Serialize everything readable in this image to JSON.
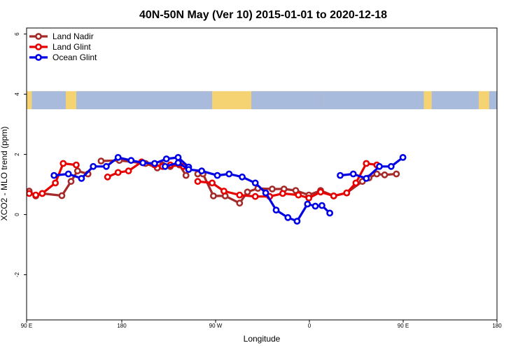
{
  "chart_data": {
    "type": "line",
    "title": "40N-50N May (Ver 10)   2015-01-01 to 2020-12-18",
    "xlabel": "Longitude",
    "ylabel": "XCO2 - MLO trend (ppm)",
    "x_range": [
      90,
      450
    ],
    "ylim": [
      -3.5,
      6.2
    ],
    "x_ticks": [
      {
        "value": 90,
        "label": "90 E"
      },
      {
        "value": 180,
        "label": "180"
      },
      {
        "value": 270,
        "label": "90 W"
      },
      {
        "value": 360,
        "label": "0"
      },
      {
        "value": 450,
        "label": "90 E"
      },
      {
        "value": 540,
        "label": "180"
      }
    ],
    "y_ticks": [
      {
        "value": -2,
        "label": "-2"
      },
      {
        "value": 0,
        "label": "0"
      },
      {
        "value": 2,
        "label": "2"
      },
      {
        "value": 4,
        "label": "4"
      },
      {
        "value": 6,
        "label": "6"
      }
    ],
    "legend_position": "top-left",
    "grid": false,
    "map_band": {
      "y_min": 3.5,
      "y_max": 4.1,
      "land_color": "#f5d372",
      "ocean_color": "#a8bbdc"
    },
    "series": [
      {
        "name": "Land Nadir",
        "color": "#a52a2a",
        "segments": [
          [
            [
              92,
              0.78
            ],
            [
              97,
              0.62
            ],
            [
              102,
              0.7
            ],
            [
              117,
              0.63
            ],
            [
              124,
              1.1
            ],
            [
              129,
              1.45
            ],
            [
              137,
              1.35
            ]
          ],
          [
            [
              147,
              1.78
            ],
            [
              161,
              1.8
            ],
            [
              181,
              1.7
            ],
            [
              190,
              1.55
            ],
            [
              194,
              1.65
            ],
            [
              200,
              1.6
            ],
            [
              207,
              1.65
            ],
            [
              212,
              1.3
            ]
          ],
          [
            [
              221,
              1.35
            ],
            [
              225,
              1.35
            ],
            [
              233,
              0.62
            ],
            [
              242,
              0.62
            ],
            [
              253,
              0.38
            ],
            [
              259,
              0.75
            ],
            [
              267,
              0.87
            ],
            [
              278,
              0.85
            ],
            [
              287,
              0.85
            ],
            [
              296,
              0.8
            ],
            [
              306,
              0.65
            ],
            [
              315,
              0.8
            ],
            [
              325,
              0.62
            ],
            [
              335,
              0.72
            ],
            [
              347,
              1.1
            ],
            [
              352,
              1.22
            ],
            [
              358,
              1.35
            ],
            [
              364,
              1.32
            ],
            [
              373,
              1.35
            ]
          ]
        ]
      },
      {
        "name": "Land Glint",
        "color": "#e60000",
        "segments": [
          [
            [
              92,
              0.7
            ],
            [
              97,
              0.65
            ],
            [
              102,
              0.7
            ],
            [
              112,
              1.05
            ],
            [
              118,
              1.7
            ],
            [
              128,
              1.65
            ]
          ],
          [
            [
              152,
              1.25
            ],
            [
              160,
              1.4
            ],
            [
              168,
              1.45
            ],
            [
              178,
              1.75
            ],
            [
              188,
              1.65
            ],
            [
              194,
              1.6
            ],
            [
              200,
              1.65
            ],
            [
              210,
              1.6
            ]
          ],
          [
            [
              221,
              1.1
            ],
            [
              232,
              1.05
            ],
            [
              241,
              0.78
            ],
            [
              253,
              0.65
            ],
            [
              265,
              0.6
            ],
            [
              276,
              0.6
            ],
            [
              286,
              0.7
            ],
            [
              298,
              0.65
            ],
            [
              306,
              0.55
            ],
            [
              315,
              0.75
            ],
            [
              325,
              0.62
            ],
            [
              335,
              0.72
            ],
            [
              342,
              1.05
            ],
            [
              350,
              1.7
            ],
            [
              358,
              1.65
            ]
          ]
        ]
      },
      {
        "name": "Ocean Glint",
        "color": "#0000e6",
        "segments": [
          [
            [
              111,
              1.3
            ],
            [
              122,
              1.35
            ],
            [
              132,
              1.2
            ],
            [
              141,
              1.6
            ],
            [
              151,
              1.6
            ],
            [
              160,
              1.9
            ],
            [
              170,
              1.8
            ],
            [
              179,
              1.72
            ],
            [
              188,
              1.7
            ],
            [
              197,
              1.85
            ],
            [
              206,
              1.9
            ],
            [
              214,
              1.58
            ]
          ],
          [
            [
              196,
              1.6
            ],
            [
              206,
              1.72
            ],
            [
              214,
              1.5
            ],
            [
              224,
              1.45
            ],
            [
              236,
              1.3
            ],
            [
              245,
              1.35
            ],
            [
              255,
              1.25
            ],
            [
              265,
              1.05
            ],
            [
              273,
              0.72
            ],
            [
              281,
              0.15
            ],
            [
              290,
              -0.1
            ],
            [
              297,
              -0.22
            ],
            [
              305,
              0.35
            ],
            [
              311,
              0.28
            ]
          ],
          [
            [
              316,
              0.3
            ],
            [
              322,
              0.05
            ]
          ],
          [
            [
              330,
              1.3
            ],
            [
              340,
              1.35
            ],
            [
              350,
              1.2
            ],
            [
              360,
              1.6
            ],
            [
              369,
              1.6
            ],
            [
              378,
              1.9
            ]
          ]
        ]
      }
    ]
  }
}
